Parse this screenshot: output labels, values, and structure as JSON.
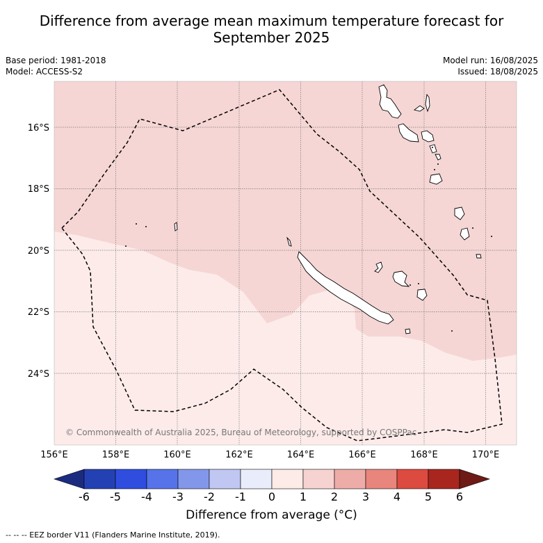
{
  "header": {
    "title_line1": "Difference from average mean maximum temperature forecast for",
    "title_line2": "September 2025",
    "base_period": "Base period: 1981-2018",
    "model": "Model: ACCESS-S2",
    "model_run": "Model run: 16/08/2025",
    "issued": "Issued: 18/08/2025"
  },
  "map": {
    "lat_labels": [
      "16°S",
      "18°S",
      "20°S",
      "22°S",
      "24°S"
    ],
    "lon_labels": [
      "156°E",
      "158°E",
      "160°E",
      "162°E",
      "164°E",
      "166°E",
      "168°E",
      "170°E"
    ],
    "copyright": "© Commonwealth of Australia 2025, Bureau of Meteorology, supported by COSPPac",
    "colors": {
      "zone_0_1": "#fcebe9",
      "zone_1_2": "#f5d6d4",
      "border": "#000000",
      "grid": "#777777"
    }
  },
  "colorbar": {
    "tick_labels": [
      "-6",
      "-5",
      "-4",
      "-3",
      "-2",
      "-1",
      "0",
      "1",
      "2",
      "3",
      "4",
      "5",
      "6"
    ],
    "colors": [
      "#1b2c80",
      "#2441b4",
      "#2f4ee0",
      "#5673ea",
      "#8397ea",
      "#c0c7f2",
      "#e9edfb",
      "#fdebe8",
      "#f6d3d1",
      "#eeaca8",
      "#e8857d",
      "#dc4a40",
      "#a9261f",
      "#6e1a16"
    ],
    "label": "Difference from average (°C)"
  },
  "footnote": "--  --  -- EEZ border V11 (Flanders Marine Institute, 2019)."
}
